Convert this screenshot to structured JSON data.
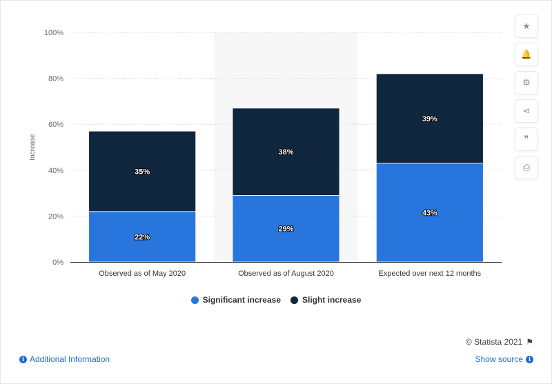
{
  "chart_data": {
    "type": "bar",
    "stacked": true,
    "categories": [
      "Observed as of May 2020",
      "Observed as of August 2020",
      "Expected over next 12 months"
    ],
    "series": [
      {
        "name": "Significant increase",
        "values": [
          22,
          29,
          43
        ],
        "color": "#2876dd"
      },
      {
        "name": "Slight increase",
        "values": [
          35,
          38,
          39
        ],
        "color": "#10263f"
      }
    ],
    "value_suffix": "%",
    "ylabel": "Increase",
    "xlabel": "",
    "ylim": [
      0,
      100
    ],
    "yticks": [
      "0%",
      "20%",
      "40%",
      "60%",
      "80%",
      "100%"
    ],
    "grid": true,
    "highlighted_category_index": 1,
    "legend_position": "bottom"
  },
  "legend": {
    "items": [
      {
        "label": "Significant increase",
        "color": "#2876dd"
      },
      {
        "label": "Slight increase",
        "color": "#10263f"
      }
    ]
  },
  "toolbar": {
    "buttons": [
      {
        "name": "star-icon",
        "glyph": "★"
      },
      {
        "name": "bell-icon",
        "glyph": "🔔"
      },
      {
        "name": "gear-icon",
        "glyph": "⚙"
      },
      {
        "name": "share-icon",
        "glyph": "⋖"
      },
      {
        "name": "quote-icon",
        "glyph": "❞"
      },
      {
        "name": "print-icon",
        "glyph": "⎙"
      }
    ]
  },
  "footer": {
    "credit": "© Statista 2021",
    "additional_info": "Additional Information",
    "show_source": "Show source"
  }
}
